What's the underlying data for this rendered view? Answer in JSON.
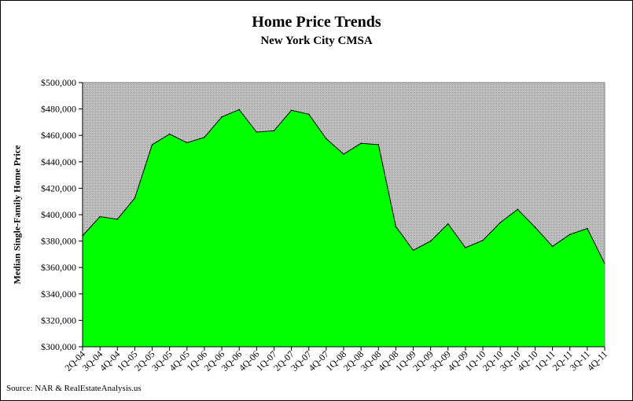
{
  "chart_data": {
    "type": "area",
    "title": "Home Price Trends",
    "subtitle": "New York City CMSA",
    "xlabel": "",
    "ylabel": "Median Single-Family Home Price",
    "source": "Source: NAR & RealEstateAnalysis.us",
    "ylim": [
      300000,
      500000
    ],
    "y_ticks": [
      "$300,000",
      "$320,000",
      "$340,000",
      "$360,000",
      "$380,000",
      "$400,000",
      "$420,000",
      "$440,000",
      "$460,000",
      "$480,000",
      "$500,000"
    ],
    "categories": [
      "2Q-04",
      "3Q-04",
      "4Q-04",
      "1Q-05",
      "2Q-05",
      "3Q-05",
      "4Q-05",
      "1Q-06",
      "2Q-06",
      "3Q-06",
      "4Q-06",
      "1Q-07",
      "2Q-07",
      "3Q-07",
      "4Q-07",
      "1Q-08",
      "2Q-08",
      "3Q-08",
      "4Q-08",
      "1Q-09",
      "2Q-09",
      "3Q-09",
      "4Q-09",
      "1Q-10",
      "2Q-10",
      "3Q-10",
      "4Q-10",
      "1Q-11",
      "2Q-11",
      "3Q-11",
      "4Q-11"
    ],
    "values": [
      384000,
      398500,
      396500,
      412500,
      453000,
      461000,
      454500,
      458500,
      474000,
      479500,
      462500,
      463500,
      479000,
      476000,
      457500,
      445800,
      454000,
      453000,
      391000,
      373000,
      380000,
      393000,
      375000,
      380500,
      394000,
      404000,
      390500,
      376000,
      385000,
      389500,
      363000
    ],
    "grid": false,
    "colors": {
      "fill": "#00ff00",
      "plot_bg": "#c0c0c0",
      "line": "#000000"
    }
  }
}
